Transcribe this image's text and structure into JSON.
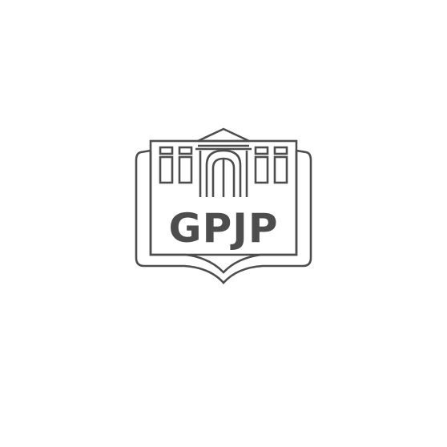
{
  "logo": {
    "text": "GPJP",
    "icon": "building-book-emblem-icon",
    "color": "#4d4d4d",
    "background": "#ffffff"
  }
}
